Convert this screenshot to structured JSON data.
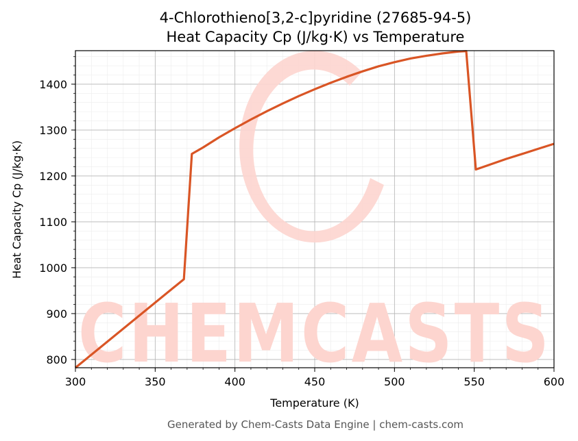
{
  "chart_data": {
    "type": "line",
    "title": "4-Chlorothieno[3,2-c]pyridine (27685-94-5)",
    "subtitle": "Heat Capacity Cp (J/kg·K) vs Temperature",
    "xlabel": "Temperature (K)",
    "ylabel": "Heat Capacity Cp (J/kg·K)",
    "xlim": [
      300,
      600
    ],
    "ylim": [
      782,
      1473
    ],
    "xticks": [
      300,
      350,
      400,
      450,
      500,
      550,
      600
    ],
    "yticks": [
      800,
      900,
      1000,
      1100,
      1200,
      1300,
      1400
    ],
    "grid": true,
    "line_color": "#d95525",
    "series": [
      {
        "x": [
          300,
          368,
          373,
          380,
          390,
          400,
          410,
          420,
          430,
          440,
          450,
          460,
          470,
          480,
          490,
          500,
          510,
          520,
          530,
          540,
          545,
          551,
          560,
          570,
          580,
          590,
          600
        ],
        "values": [
          782,
          975,
          1248,
          1262,
          1284,
          1304,
          1323,
          1341,
          1358,
          1374,
          1389,
          1403,
          1416,
          1428,
          1439,
          1448,
          1456,
          1462,
          1467,
          1471,
          1472,
          1214,
          1225,
          1237,
          1248,
          1259,
          1270
        ]
      }
    ]
  },
  "watermark": {
    "text": "CHEMCASTS",
    "color": "#fdd5cf"
  },
  "footer": "Generated by Chem-Casts Data Engine | chem-casts.com"
}
